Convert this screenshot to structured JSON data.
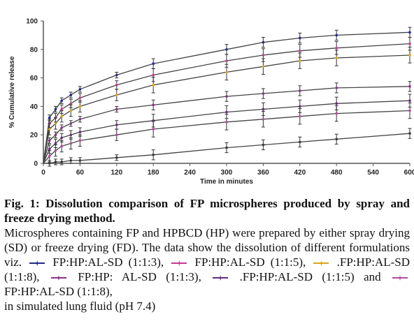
{
  "chart_data": {
    "type": "line",
    "ylabel": "% Cumulative release",
    "xlabel": "Time in minutes",
    "x": [
      0,
      10,
      20,
      30,
      45,
      60,
      120,
      180,
      300,
      360,
      420,
      480,
      600
    ],
    "xticks": [
      0,
      60,
      120,
      180,
      240,
      300,
      360,
      420,
      480,
      540,
      600
    ],
    "yticks": [
      0,
      20,
      40,
      60,
      80,
      100
    ],
    "xlim": [
      0,
      600
    ],
    "ylim": [
      0,
      100
    ],
    "series": [
      {
        "name": "FP:HP:AL-SD (1:1:3)",
        "color": "#1f2a8a",
        "values": [
          0,
          32,
          38,
          44,
          48,
          52,
          62,
          70,
          80,
          85,
          88,
          90,
          92
        ]
      },
      {
        "name": "FP:HP:AL-SD (1:1:5)",
        "color": "#c23b8f",
        "values": [
          0,
          28,
          32,
          38,
          42,
          46,
          55,
          62,
          72,
          76,
          79,
          81,
          84
        ]
      },
      {
        "name": "FP:HP:AL-SD (1:1:8)",
        "color": "#d6a51c",
        "values": [
          0,
          24,
          28,
          33,
          37,
          40,
          48,
          55,
          64,
          68,
          72,
          74,
          76
        ]
      },
      {
        "name": "FP:HP: AL-SD (1:1:3)",
        "color": "#8a2f8c",
        "values": [
          0,
          16,
          20,
          25,
          28,
          31,
          38,
          41,
          47,
          49,
          51,
          53,
          54
        ]
      },
      {
        "name": "FP:HP:AL-SD (1:1:5)",
        "color": "#6b2a7d",
        "values": [
          0,
          10,
          14,
          18,
          20,
          22,
          27,
          30,
          36,
          38,
          40,
          42,
          44
        ]
      },
      {
        "name": "FP:HP:AL-SD (1:1:8)",
        "color": "#b04aa0",
        "values": [
          0,
          5,
          9,
          12,
          14,
          16,
          20,
          24,
          29,
          31,
          33,
          35,
          37
        ]
      },
      {
        "name": "FP:HP:AL-SD (1:1:8)",
        "color": "#3a3a3a",
        "values": [
          0,
          0,
          1,
          1,
          2,
          2,
          4,
          6,
          11,
          13,
          15,
          17,
          21
        ]
      }
    ]
  },
  "caption": {
    "title": "Fig. 1: Dissolution comparison of FP microspheres produced by spray and freeze drying method.",
    "intro": "Microspheres containing FP and HPBCD (HP) were prepared by either spray drying (SD) or freeze drying (FD). The data show the dissolution of  different formulations viz.",
    "item1": "FP:HP:AL-SD (1:1:3),",
    "item2": "FP:HP:AL-SD (1:1:5),",
    "item3": ".FP:HP:AL-SD (1:1:8),",
    "item4": "FP:HP: AL-SD (1:1:3),",
    "item5": ".FP:HP:AL-SD (1:1:5)",
    "and": "and",
    "item6": "FP:HP:AL-SD (1:1:8),",
    "end": "in simulated lung fluid (pH 7.4)",
    "legend_colors": [
      "#1f2a8a",
      "#c23b8f",
      "#d6a51c",
      "#8a2f8c",
      "#6b2a7d",
      "#b04aa0"
    ]
  }
}
